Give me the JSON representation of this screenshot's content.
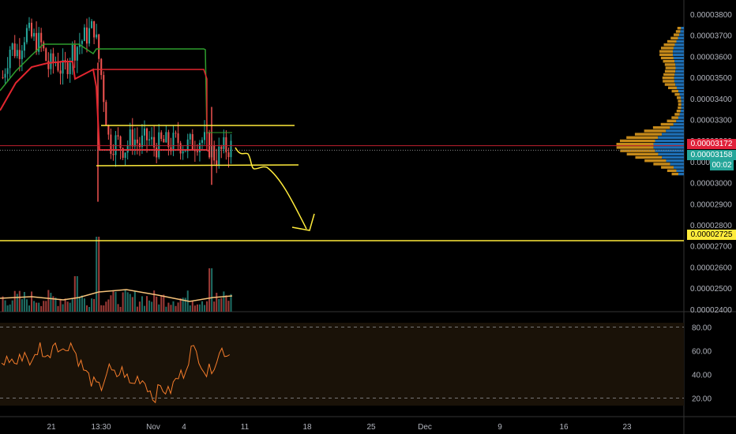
{
  "colors": {
    "background": "#000000",
    "up": "#26a69a",
    "down": "#ef5350",
    "ma_red": "#e3262f",
    "ma_green": "#2e9e2e",
    "annotation": "#ffeb3b",
    "rsi_line": "#f57c2b",
    "rsi_band": "#1a1208",
    "volume_ma": "#f5c27a",
    "vp_gold": "#c68a1a",
    "vp_blue": "#1e6fb5"
  },
  "price_axis": {
    "ticks": [
      "0.00003800",
      "0.00003700",
      "0.00003600",
      "0.00003500",
      "0.00003400",
      "0.00003300",
      "0.00003200",
      "0.00003100",
      "0.00003000",
      "0.00002900",
      "0.00002800",
      "0.00002700",
      "0.00002600",
      "0.00002500",
      "0.00002400"
    ]
  },
  "rsi_axis": {
    "ticks": [
      "80.00",
      "60.00",
      "40.00",
      "20.00"
    ]
  },
  "time_axis": {
    "ticks": [
      "21",
      "13:30",
      "Nov",
      "4",
      "11",
      "18",
      "25",
      "Dec",
      "9",
      "16",
      "23"
    ]
  },
  "badges": {
    "level_line": "0.00002725",
    "price_red": "0.00003172",
    "price_teal": "0.00003158",
    "countdown": "00:02"
  },
  "chart_data": {
    "type": "candlestick",
    "title": "",
    "xlabel": "",
    "ylabel": "",
    "ylim": [
      2.4e-05,
      3.85e-05
    ],
    "horizontal_line": 2.725e-05,
    "last_price": 3.172e-05,
    "marked_price": 3.158e-05,
    "rsi_ylim": [
      15,
      85
    ],
    "rsi_levels": [
      80,
      20
    ],
    "x_ticks": [
      "21",
      "13:30",
      "Nov",
      "4",
      "11",
      "18",
      "25",
      "Dec",
      "9",
      "16",
      "23"
    ],
    "close_approx": [
      3.5e-05,
      3.65e-05,
      3.62e-05,
      3.72e-05,
      3.68e-05,
      3.66e-05,
      3.55e-05,
      3.58e-05,
      3.52e-05,
      3.62e-05,
      3.66e-05,
      3.7e-05,
      3.74e-05,
      3.5e-05,
      3.18e-05,
      3.2e-05,
      3.16e-05,
      3.22e-05,
      3.18e-05,
      3.21e-05,
      3.17e-05,
      3.19e-05,
      3.18e-05,
      3.2e-05,
      3.17e-05,
      3.19e-05,
      3.21e-05,
      3.18e-05,
      3.12e-05,
      3.16e-05,
      3.17e-05
    ],
    "rsi_approx": [
      50,
      53,
      49,
      59,
      48,
      65,
      52,
      70,
      58,
      68,
      54,
      42,
      33,
      27,
      45,
      38,
      44,
      30,
      38,
      33,
      20,
      30,
      24,
      36,
      42,
      62,
      55,
      40,
      50,
      61,
      57
    ]
  }
}
